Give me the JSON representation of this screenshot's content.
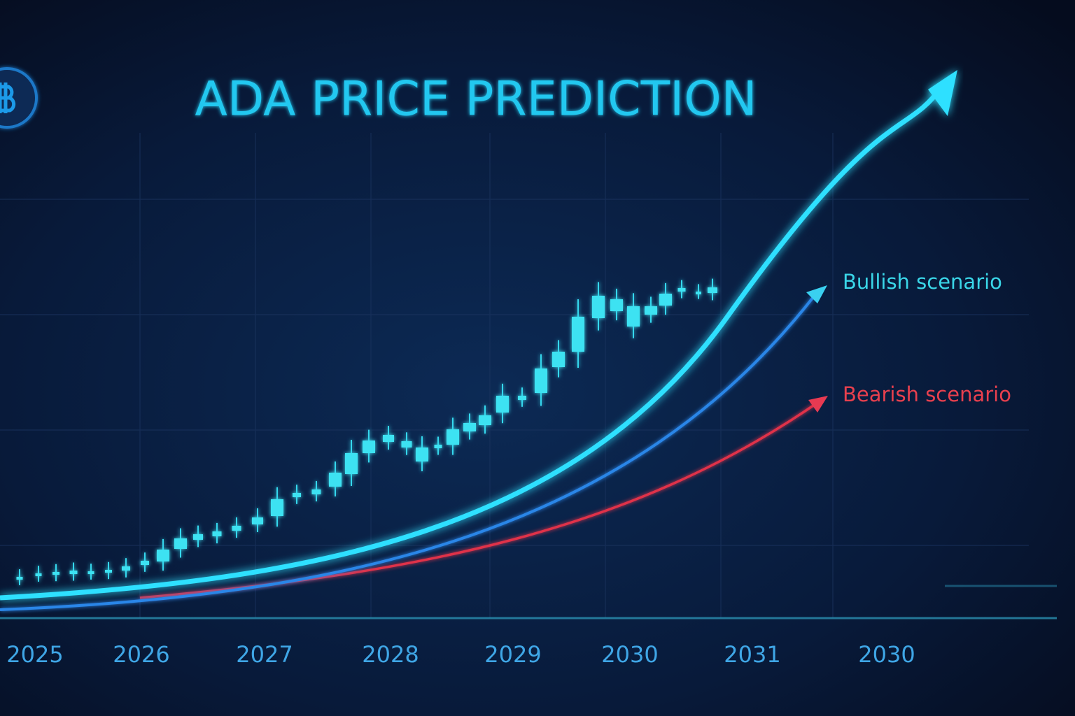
{
  "title": "ADA PRICE PREDICTION",
  "x_labels": [
    "2025",
    "2026",
    "2027",
    "2028",
    "2029",
    "2030",
    "2031",
    "2030"
  ],
  "scenarios": [
    "Bullish scenario",
    "Bearish scenario"
  ]
}
